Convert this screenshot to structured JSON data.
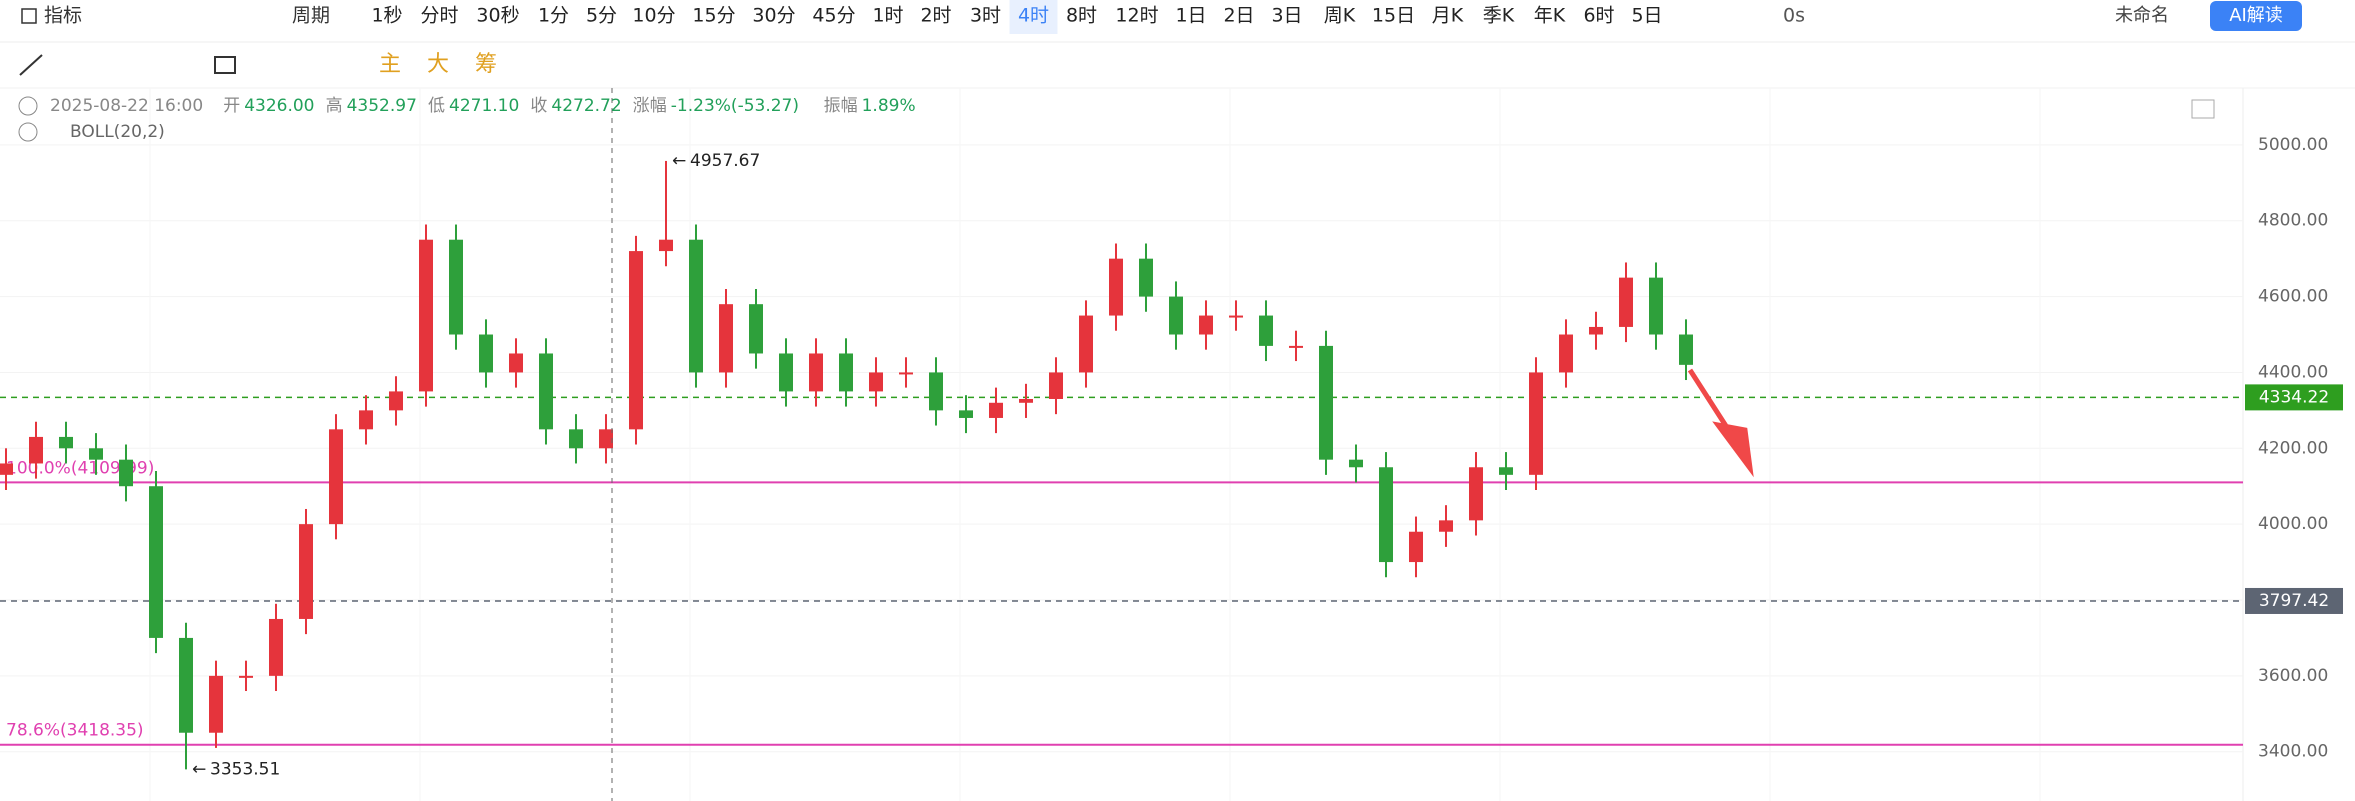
{
  "toolbar": {
    "indicator": "指标",
    "period": "周期",
    "periods": [
      "1秒",
      "分时",
      "30秒",
      "1分",
      "5分",
      "10分",
      "15分",
      "30分",
      "45分",
      "1时",
      "2时",
      "3时",
      "4时",
      "8时",
      "12时",
      "1日",
      "2日",
      "3日",
      "周K",
      "15日",
      "月K",
      "季K",
      "年K",
      "6时",
      "5日"
    ],
    "active_period": "4时",
    "latency": "0s",
    "layout_name": "未命名",
    "ai_button": "AI解读",
    "chips": [
      "主",
      "大",
      "筹"
    ]
  },
  "info": {
    "datetime": "2025-08-22 16:00",
    "fields": [
      {
        "label": "开",
        "value": "4326.00"
      },
      {
        "label": "高",
        "value": "4352.97"
      },
      {
        "label": "低",
        "value": "4271.10"
      },
      {
        "label": "收",
        "value": "4272.72"
      },
      {
        "label": "涨幅",
        "value": "-1.23%(-53.27)"
      },
      {
        "label": "振幅",
        "value": "1.89%"
      }
    ],
    "indicator": "BOLL(20,2)"
  },
  "chart_data": {
    "type": "candlestick",
    "open": [
      4130,
      4160,
      4230,
      4200,
      4170,
      4100,
      3700,
      3450,
      3600,
      3600,
      3750,
      4000,
      4250,
      4300,
      4350,
      4750,
      4500,
      4400,
      4450,
      4250,
      4200,
      4250,
      4720,
      4750,
      4400,
      4580,
      4450,
      4350,
      4450,
      4350,
      4400,
      4400,
      4300,
      4280,
      4320,
      4330,
      4400,
      4550,
      4700,
      4600,
      4500,
      4550,
      4550,
      4470,
      4470,
      4170,
      4150,
      3900,
      3980,
      4010,
      4150,
      4130,
      4400,
      4500,
      4520,
      4650,
      4500
    ],
    "high": [
      4200,
      4270,
      4270,
      4240,
      4210,
      4140,
      3740,
      3640,
      3640,
      3790,
      4040,
      4290,
      4340,
      4390,
      4790,
      4790,
      4540,
      4490,
      4490,
      4290,
      4290,
      4760,
      4957.67,
      4790,
      4620,
      4620,
      4490,
      4490,
      4490,
      4440,
      4440,
      4440,
      4340,
      4360,
      4370,
      4440,
      4590,
      4740,
      4740,
      4640,
      4590,
      4590,
      4590,
      4510,
      4510,
      4210,
      4190,
      4020,
      4050,
      4190,
      4190,
      4440,
      4540,
      4560,
      4690,
      4690,
      4540
    ],
    "low": [
      4090,
      4120,
      4160,
      4130,
      4060,
      3660,
      3353.51,
      3410,
      3560,
      3560,
      3710,
      3960,
      4210,
      4260,
      4310,
      4460,
      4360,
      4360,
      4210,
      4160,
      4160,
      4210,
      4680,
      4360,
      4360,
      4410,
      4310,
      4310,
      4310,
      4310,
      4360,
      4260,
      4240,
      4240,
      4280,
      4290,
      4360,
      4510,
      4560,
      4460,
      4460,
      4510,
      4430,
      4430,
      4130,
      4110,
      3860,
      3860,
      3940,
      3970,
      4090,
      4090,
      4360,
      4460,
      4480,
      4460,
      4380
    ],
    "close": [
      4160,
      4230,
      4200,
      4170,
      4100,
      3700,
      3450,
      3600,
      3600,
      3750,
      4000,
      4250,
      4300,
      4350,
      4750,
      4500,
      4400,
      4450,
      4250,
      4200,
      4250,
      4720,
      4750,
      4400,
      4580,
      4450,
      4350,
      4450,
      4350,
      4400,
      4400,
      4300,
      4280,
      4320,
      4330,
      4400,
      4550,
      4700,
      4600,
      4500,
      4550,
      4550,
      4470,
      4470,
      4170,
      4150,
      3900,
      3980,
      4010,
      4150,
      4130,
      4400,
      4500,
      4520,
      4650,
      4500,
      4420
    ],
    "up_color": "#e5343c",
    "down_color": "#2ea03b",
    "ylim": [
      3270,
      5150
    ],
    "yticks": [
      {
        "value": 3400,
        "label": "3400.00"
      },
      {
        "value": 3600,
        "label": "3600.00"
      },
      {
        "value": 3800,
        "label": "3800.00"
      },
      {
        "value": 4000,
        "label": "4000.00"
      },
      {
        "value": 4200,
        "label": "4200.00"
      },
      {
        "value": 4400,
        "label": "4400.00"
      },
      {
        "value": 4600,
        "label": "4600.00"
      },
      {
        "value": 4800,
        "label": "4800.00"
      },
      {
        "value": 5000,
        "label": "5000.00"
      }
    ],
    "grid": true,
    "price_lines": [
      {
        "value": 4334.22,
        "color": "#2e9e1f"
      },
      {
        "value": 3797.42,
        "color": "#5d6573"
      }
    ],
    "fib_levels": [
      {
        "label": "100.0%(4109.99)",
        "value": 4109.99,
        "color": "#e040b0"
      },
      {
        "label": "78.6%(3418.35)",
        "value": 3418.35,
        "color": "#e040b0"
      }
    ]
  }
}
